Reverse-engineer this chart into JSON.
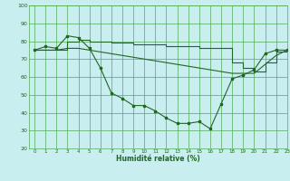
{
  "bg_color": "#c8eef0",
  "grid_color": "#55aa55",
  "line_color": "#226622",
  "xlabel": "Humidité relative (%)",
  "xlabel_color": "#226622",
  "tick_color": "#226622",
  "ylim": [
    20,
    100
  ],
  "xlim": [
    -0.5,
    23
  ],
  "yticks": [
    20,
    30,
    40,
    50,
    60,
    70,
    80,
    90,
    100
  ],
  "xticks": [
    0,
    1,
    2,
    3,
    4,
    5,
    6,
    7,
    8,
    9,
    10,
    11,
    12,
    13,
    14,
    15,
    16,
    17,
    18,
    19,
    20,
    21,
    22,
    23
  ],
  "series1_x": [
    0,
    1,
    2,
    3,
    4,
    5,
    6,
    7,
    8,
    9,
    10,
    11,
    12,
    13,
    14,
    15,
    16,
    17,
    18,
    19,
    20,
    21,
    22,
    23
  ],
  "series1_y": [
    75,
    77,
    76,
    83,
    82,
    76,
    65,
    51,
    48,
    44,
    44,
    41,
    37,
    34,
    34,
    35,
    31,
    45,
    59,
    61,
    64,
    73,
    75,
    75
  ],
  "series2_x": [
    0,
    1,
    2,
    3,
    4,
    5,
    6,
    7,
    8,
    9,
    10,
    11,
    12,
    13,
    14,
    15,
    16,
    17,
    18,
    19,
    20,
    21,
    22,
    23
  ],
  "series2_y": [
    75,
    75,
    75,
    80,
    81,
    80,
    80,
    79,
    79,
    78,
    78,
    78,
    77,
    77,
    77,
    76,
    76,
    76,
    68,
    65,
    63,
    68,
    74,
    75
  ],
  "series3_x": [
    0,
    1,
    2,
    3,
    4,
    5,
    6,
    7,
    8,
    9,
    10,
    11,
    12,
    13,
    14,
    15,
    16,
    17,
    18,
    19,
    20,
    21,
    22,
    23
  ],
  "series3_y": [
    75,
    75,
    75,
    76,
    76,
    75,
    74,
    73,
    72,
    71,
    70,
    69,
    68,
    67,
    66,
    65,
    64,
    63,
    62,
    62,
    62,
    67,
    72,
    75
  ]
}
